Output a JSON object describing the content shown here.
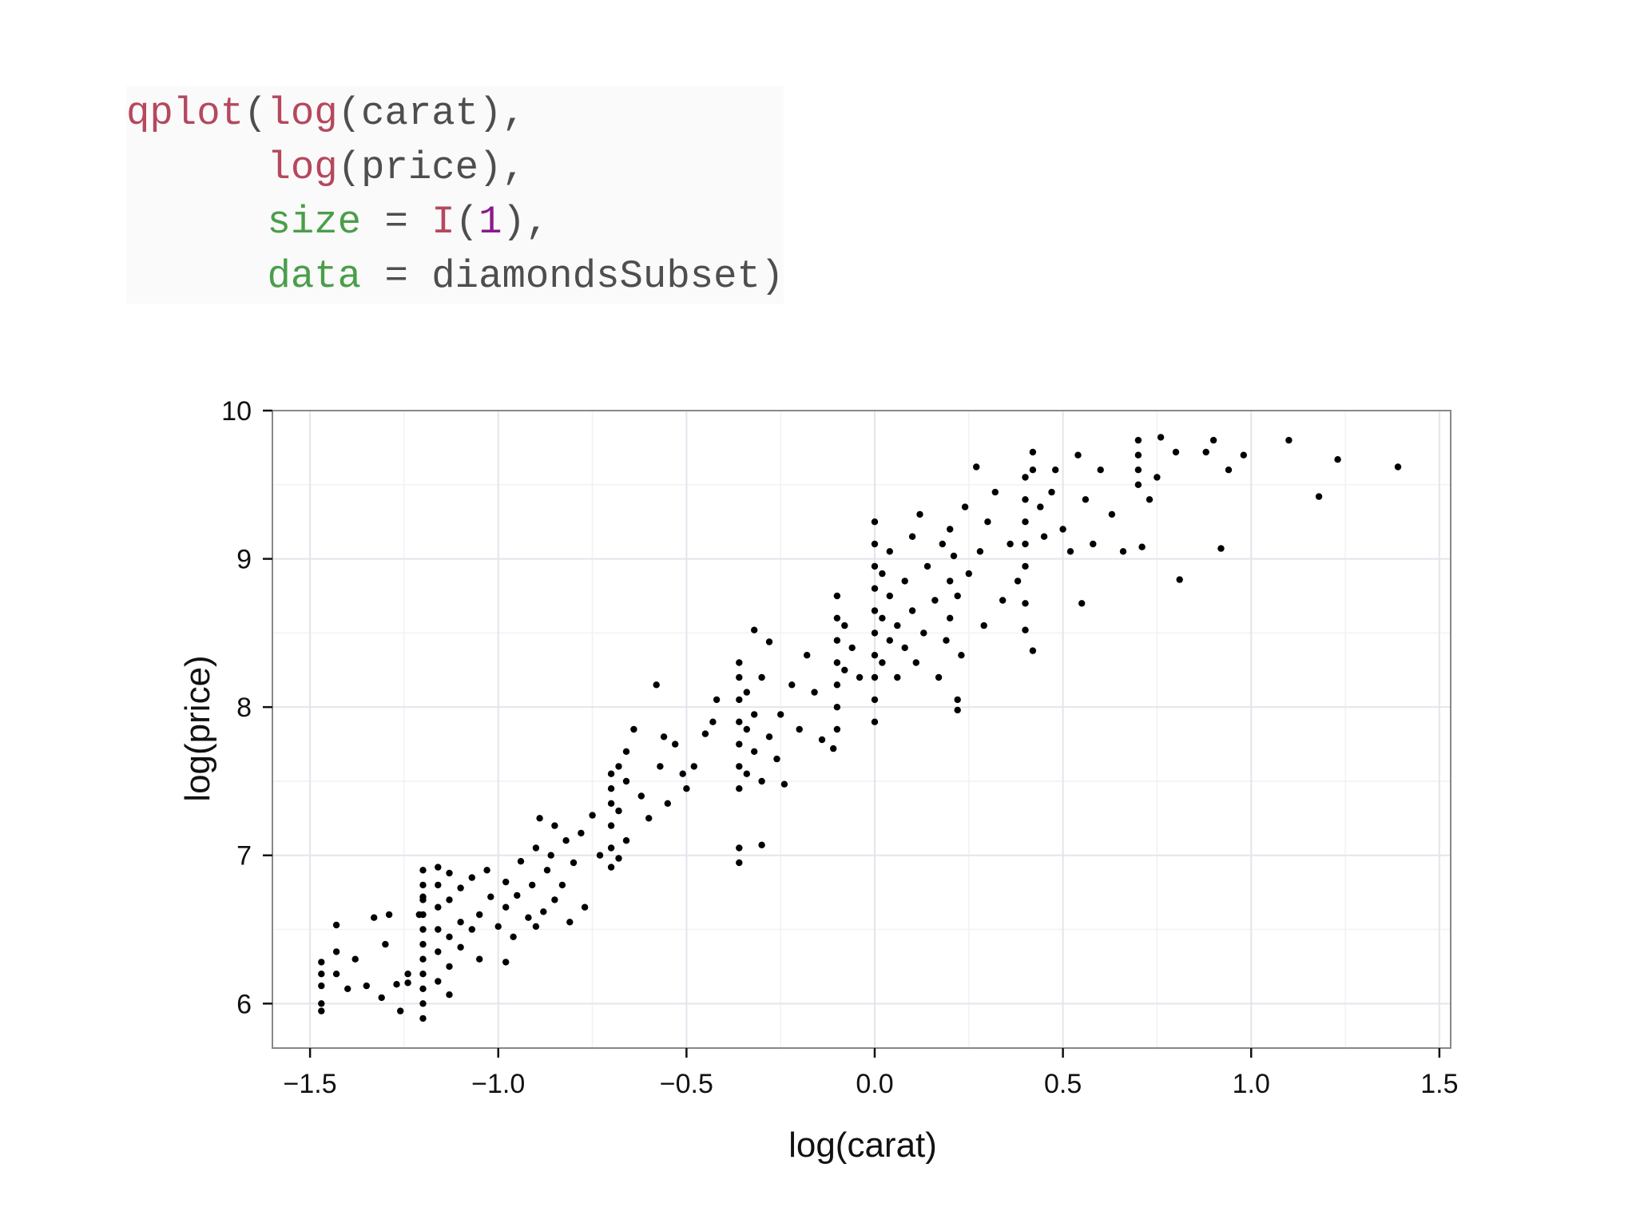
{
  "code": {
    "lines": [
      [
        {
          "text": "qplot",
          "color": "#b5485e"
        },
        {
          "text": "(",
          "color": "#4e4e4e"
        },
        {
          "text": "log",
          "color": "#b5485e"
        },
        {
          "text": "(carat),",
          "color": "#4e4e4e"
        }
      ],
      [
        {
          "text": "      ",
          "color": "#4e4e4e"
        },
        {
          "text": "log",
          "color": "#b5485e"
        },
        {
          "text": "(price),",
          "color": "#4e4e4e"
        }
      ],
      [
        {
          "text": "      ",
          "color": "#4e4e4e"
        },
        {
          "text": "size",
          "color": "#4a9e4a"
        },
        {
          "text": " = ",
          "color": "#4e4e4e"
        },
        {
          "text": "I",
          "color": "#b5485e"
        },
        {
          "text": "(",
          "color": "#4e4e4e"
        },
        {
          "text": "1",
          "color": "#8a1a8a"
        },
        {
          "text": "),",
          "color": "#4e4e4e"
        }
      ],
      [
        {
          "text": "      ",
          "color": "#4e4e4e"
        },
        {
          "text": "data",
          "color": "#4a9e4a"
        },
        {
          "text": " = diamondsSubset)",
          "color": "#4e4e4e"
        }
      ]
    ]
  },
  "chart_data": {
    "type": "scatter",
    "xlabel": "log(carat)",
    "ylabel": "log(price)",
    "xlim": [
      -1.6,
      1.53
    ],
    "ylim": [
      5.7,
      10.0
    ],
    "xticks": [
      -1.5,
      -1.0,
      -0.5,
      0.0,
      0.5,
      1.0,
      1.5
    ],
    "xtick_labels": [
      "−1.5",
      "−1.0",
      "−0.5",
      "0.0",
      "0.5",
      "1.0",
      "1.5"
    ],
    "yticks": [
      6,
      7,
      8,
      9,
      10
    ],
    "ytick_labels": [
      "6",
      "7",
      "8",
      "9",
      "10"
    ],
    "grid": true,
    "point_color": "#000000",
    "approx_points": 1000,
    "points": [
      [
        -1.47,
        5.95
      ],
      [
        -1.47,
        6.0
      ],
      [
        -1.47,
        6.12
      ],
      [
        -1.47,
        6.2
      ],
      [
        -1.47,
        6.28
      ],
      [
        -1.43,
        6.2
      ],
      [
        -1.43,
        6.35
      ],
      [
        -1.43,
        6.53
      ],
      [
        -1.4,
        6.1
      ],
      [
        -1.38,
        6.3
      ],
      [
        -1.35,
        6.12
      ],
      [
        -1.33,
        6.58
      ],
      [
        -1.31,
        6.04
      ],
      [
        -1.3,
        6.4
      ],
      [
        -1.29,
        6.6
      ],
      [
        -1.27,
        6.13
      ],
      [
        -1.26,
        5.95
      ],
      [
        -1.24,
        6.14
      ],
      [
        -1.24,
        6.2
      ],
      [
        -1.21,
        6.6
      ],
      [
        -1.2,
        6.72
      ],
      [
        -1.2,
        5.9
      ],
      [
        -1.2,
        6.0
      ],
      [
        -1.2,
        6.1
      ],
      [
        -1.2,
        6.2
      ],
      [
        -1.2,
        6.3
      ],
      [
        -1.2,
        6.4
      ],
      [
        -1.2,
        6.5
      ],
      [
        -1.2,
        6.6
      ],
      [
        -1.2,
        6.7
      ],
      [
        -1.2,
        6.8
      ],
      [
        -1.2,
        6.9
      ],
      [
        -1.16,
        6.15
      ],
      [
        -1.16,
        6.35
      ],
      [
        -1.16,
        6.5
      ],
      [
        -1.16,
        6.65
      ],
      [
        -1.16,
        6.8
      ],
      [
        -1.16,
        6.92
      ],
      [
        -1.13,
        6.06
      ],
      [
        -1.13,
        6.25
      ],
      [
        -1.13,
        6.45
      ],
      [
        -1.13,
        6.7
      ],
      [
        -1.13,
        6.88
      ],
      [
        -1.1,
        6.38
      ],
      [
        -1.1,
        6.55
      ],
      [
        -1.1,
        6.78
      ],
      [
        -1.07,
        6.5
      ],
      [
        -1.07,
        6.85
      ],
      [
        -1.05,
        6.3
      ],
      [
        -1.05,
        6.6
      ],
      [
        -1.03,
        6.9
      ],
      [
        -1.02,
        6.72
      ],
      [
        -1.0,
        6.52
      ],
      [
        -0.98,
        6.28
      ],
      [
        -0.98,
        6.65
      ],
      [
        -0.98,
        6.82
      ],
      [
        -0.96,
        6.45
      ],
      [
        -0.95,
        6.73
      ],
      [
        -0.94,
        6.96
      ],
      [
        -0.92,
        6.58
      ],
      [
        -0.91,
        6.8
      ],
      [
        -0.9,
        7.05
      ],
      [
        -0.9,
        6.52
      ],
      [
        -0.89,
        7.25
      ],
      [
        -0.88,
        6.62
      ],
      [
        -0.87,
        6.9
      ],
      [
        -0.86,
        7.0
      ],
      [
        -0.85,
        7.2
      ],
      [
        -0.85,
        6.7
      ],
      [
        -0.83,
        6.8
      ],
      [
        -0.82,
        7.1
      ],
      [
        -0.81,
        6.55
      ],
      [
        -0.8,
        6.95
      ],
      [
        -0.78,
        7.15
      ],
      [
        -0.77,
        6.65
      ],
      [
        -0.75,
        7.27
      ],
      [
        -0.73,
        7.0
      ],
      [
        -0.7,
        6.92
      ],
      [
        -0.7,
        7.05
      ],
      [
        -0.7,
        7.2
      ],
      [
        -0.7,
        7.35
      ],
      [
        -0.7,
        7.45
      ],
      [
        -0.7,
        7.55
      ],
      [
        -0.68,
        6.98
      ],
      [
        -0.68,
        7.3
      ],
      [
        -0.68,
        7.6
      ],
      [
        -0.66,
        7.7
      ],
      [
        -0.66,
        7.5
      ],
      [
        -0.66,
        7.1
      ],
      [
        -0.64,
        7.85
      ],
      [
        -0.62,
        7.4
      ],
      [
        -0.6,
        7.25
      ],
      [
        -0.58,
        8.15
      ],
      [
        -0.57,
        7.6
      ],
      [
        -0.56,
        7.8
      ],
      [
        -0.55,
        7.35
      ],
      [
        -0.53,
        7.75
      ],
      [
        -0.51,
        7.55
      ],
      [
        -0.5,
        7.45
      ],
      [
        -0.48,
        7.6
      ],
      [
        -0.45,
        7.82
      ],
      [
        -0.43,
        7.9
      ],
      [
        -0.42,
        8.05
      ],
      [
        -0.36,
        7.45
      ],
      [
        -0.36,
        7.6
      ],
      [
        -0.36,
        7.75
      ],
      [
        -0.36,
        7.9
      ],
      [
        -0.36,
        8.05
      ],
      [
        -0.36,
        8.2
      ],
      [
        -0.36,
        8.3
      ],
      [
        -0.36,
        6.95
      ],
      [
        -0.36,
        7.05
      ],
      [
        -0.34,
        7.55
      ],
      [
        -0.34,
        7.85
      ],
      [
        -0.34,
        8.1
      ],
      [
        -0.32,
        7.7
      ],
      [
        -0.32,
        7.95
      ],
      [
        -0.32,
        8.52
      ],
      [
        -0.3,
        7.5
      ],
      [
        -0.3,
        8.2
      ],
      [
        -0.3,
        7.07
      ],
      [
        -0.28,
        7.8
      ],
      [
        -0.28,
        8.44
      ],
      [
        -0.26,
        7.65
      ],
      [
        -0.25,
        7.95
      ],
      [
        -0.24,
        7.48
      ],
      [
        -0.22,
        8.15
      ],
      [
        -0.2,
        7.85
      ],
      [
        -0.18,
        8.35
      ],
      [
        -0.16,
        8.1
      ],
      [
        -0.14,
        7.78
      ],
      [
        -0.11,
        7.72
      ],
      [
        -0.1,
        7.85
      ],
      [
        -0.1,
        8.0
      ],
      [
        -0.1,
        8.15
      ],
      [
        -0.1,
        8.3
      ],
      [
        -0.1,
        8.45
      ],
      [
        -0.1,
        8.6
      ],
      [
        -0.1,
        8.75
      ],
      [
        -0.08,
        8.25
      ],
      [
        -0.08,
        8.55
      ],
      [
        -0.06,
        8.4
      ],
      [
        -0.04,
        8.2
      ],
      [
        0.0,
        7.9
      ],
      [
        0.0,
        8.05
      ],
      [
        0.0,
        8.2
      ],
      [
        0.0,
        8.35
      ],
      [
        0.0,
        8.5
      ],
      [
        0.0,
        8.65
      ],
      [
        0.0,
        8.8
      ],
      [
        0.0,
        8.95
      ],
      [
        0.0,
        9.1
      ],
      [
        0.0,
        9.25
      ],
      [
        0.02,
        8.3
      ],
      [
        0.02,
        8.6
      ],
      [
        0.02,
        8.9
      ],
      [
        0.04,
        8.45
      ],
      [
        0.04,
        8.75
      ],
      [
        0.04,
        9.05
      ],
      [
        0.06,
        8.2
      ],
      [
        0.06,
        8.55
      ],
      [
        0.08,
        8.85
      ],
      [
        0.08,
        8.4
      ],
      [
        0.1,
        9.15
      ],
      [
        0.1,
        8.65
      ],
      [
        0.11,
        8.3
      ],
      [
        0.12,
        9.3
      ],
      [
        0.13,
        8.5
      ],
      [
        0.14,
        8.95
      ],
      [
        0.16,
        8.72
      ],
      [
        0.17,
        8.2
      ],
      [
        0.18,
        9.1
      ],
      [
        0.19,
        8.45
      ],
      [
        0.2,
        8.6
      ],
      [
        0.2,
        8.85
      ],
      [
        0.2,
        9.2
      ],
      [
        0.21,
        9.02
      ],
      [
        0.22,
        8.75
      ],
      [
        0.23,
        8.35
      ],
      [
        0.22,
        8.05
      ],
      [
        0.22,
        7.98
      ],
      [
        0.24,
        9.35
      ],
      [
        0.25,
        8.9
      ],
      [
        0.27,
        9.62
      ],
      [
        0.28,
        9.05
      ],
      [
        0.29,
        8.55
      ],
      [
        0.3,
        9.25
      ],
      [
        0.32,
        9.45
      ],
      [
        0.34,
        8.72
      ],
      [
        0.36,
        9.1
      ],
      [
        0.38,
        8.85
      ],
      [
        0.4,
        8.95
      ],
      [
        0.4,
        9.1
      ],
      [
        0.4,
        9.25
      ],
      [
        0.4,
        9.4
      ],
      [
        0.4,
        9.55
      ],
      [
        0.4,
        8.7
      ],
      [
        0.4,
        8.52
      ],
      [
        0.42,
        8.38
      ],
      [
        0.42,
        9.72
      ],
      [
        0.42,
        9.6
      ],
      [
        0.44,
        9.35
      ],
      [
        0.45,
        9.15
      ],
      [
        0.47,
        9.45
      ],
      [
        0.48,
        9.6
      ],
      [
        0.5,
        9.2
      ],
      [
        0.52,
        9.05
      ],
      [
        0.54,
        9.7
      ],
      [
        0.55,
        8.7
      ],
      [
        0.56,
        9.4
      ],
      [
        0.58,
        9.1
      ],
      [
        0.6,
        9.6
      ],
      [
        0.63,
        9.3
      ],
      [
        0.66,
        9.05
      ],
      [
        0.7,
        9.5
      ],
      [
        0.7,
        9.6
      ],
      [
        0.7,
        9.7
      ],
      [
        0.7,
        9.8
      ],
      [
        0.71,
        9.08
      ],
      [
        0.73,
        9.4
      ],
      [
        0.75,
        9.55
      ],
      [
        0.76,
        9.82
      ],
      [
        0.8,
        9.72
      ],
      [
        0.81,
        8.86
      ],
      [
        0.88,
        9.72
      ],
      [
        0.9,
        9.8
      ],
      [
        0.92,
        9.07
      ],
      [
        0.94,
        9.6
      ],
      [
        0.98,
        9.7
      ],
      [
        1.1,
        9.8
      ],
      [
        1.18,
        9.42
      ],
      [
        1.23,
        9.67
      ],
      [
        1.39,
        9.62
      ]
    ]
  }
}
